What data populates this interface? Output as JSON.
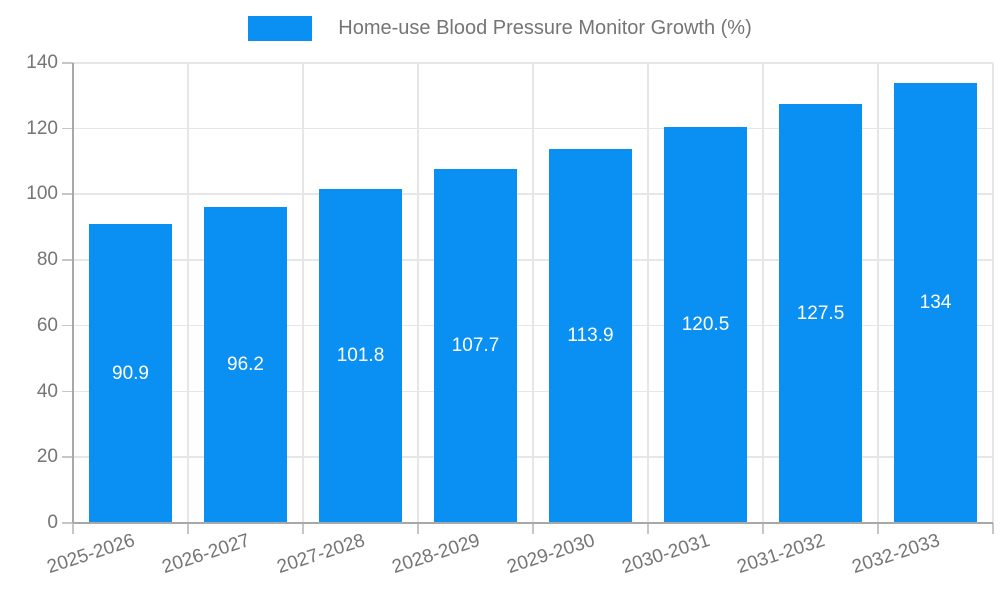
{
  "legend": {
    "series_label": "Home-use Blood Pressure Monitor Growth (%)"
  },
  "chart_data": {
    "type": "bar",
    "title": "Home-use Blood Pressure Monitor Growth (%)",
    "categories": [
      "2025-2026",
      "2026-2027",
      "2027-2028",
      "2028-2029",
      "2029-2030",
      "2030-2031",
      "2031-2032",
      "2032-2033"
    ],
    "values": [
      90.9,
      96.2,
      101.8,
      107.7,
      113.9,
      120.5,
      127.5,
      134
    ],
    "value_labels": [
      "90.9",
      "96.2",
      "101.8",
      "107.7",
      "113.9",
      "120.5",
      "127.5",
      "134"
    ],
    "xlabel": "",
    "ylabel": "",
    "ylim": [
      0,
      140
    ],
    "ytick_step": 20,
    "ytick_labels": [
      "0",
      "20",
      "40",
      "60",
      "80",
      "100",
      "120",
      "140"
    ],
    "grid": true,
    "legend_position": "top",
    "colors": {
      "bar": "#0990F2",
      "grid": "#e6e6e6",
      "axis": "#a8a8a8",
      "tick": "#c6c6c6",
      "text": "#757575",
      "value_text": "#ffffff",
      "background": "#ffffff"
    }
  }
}
